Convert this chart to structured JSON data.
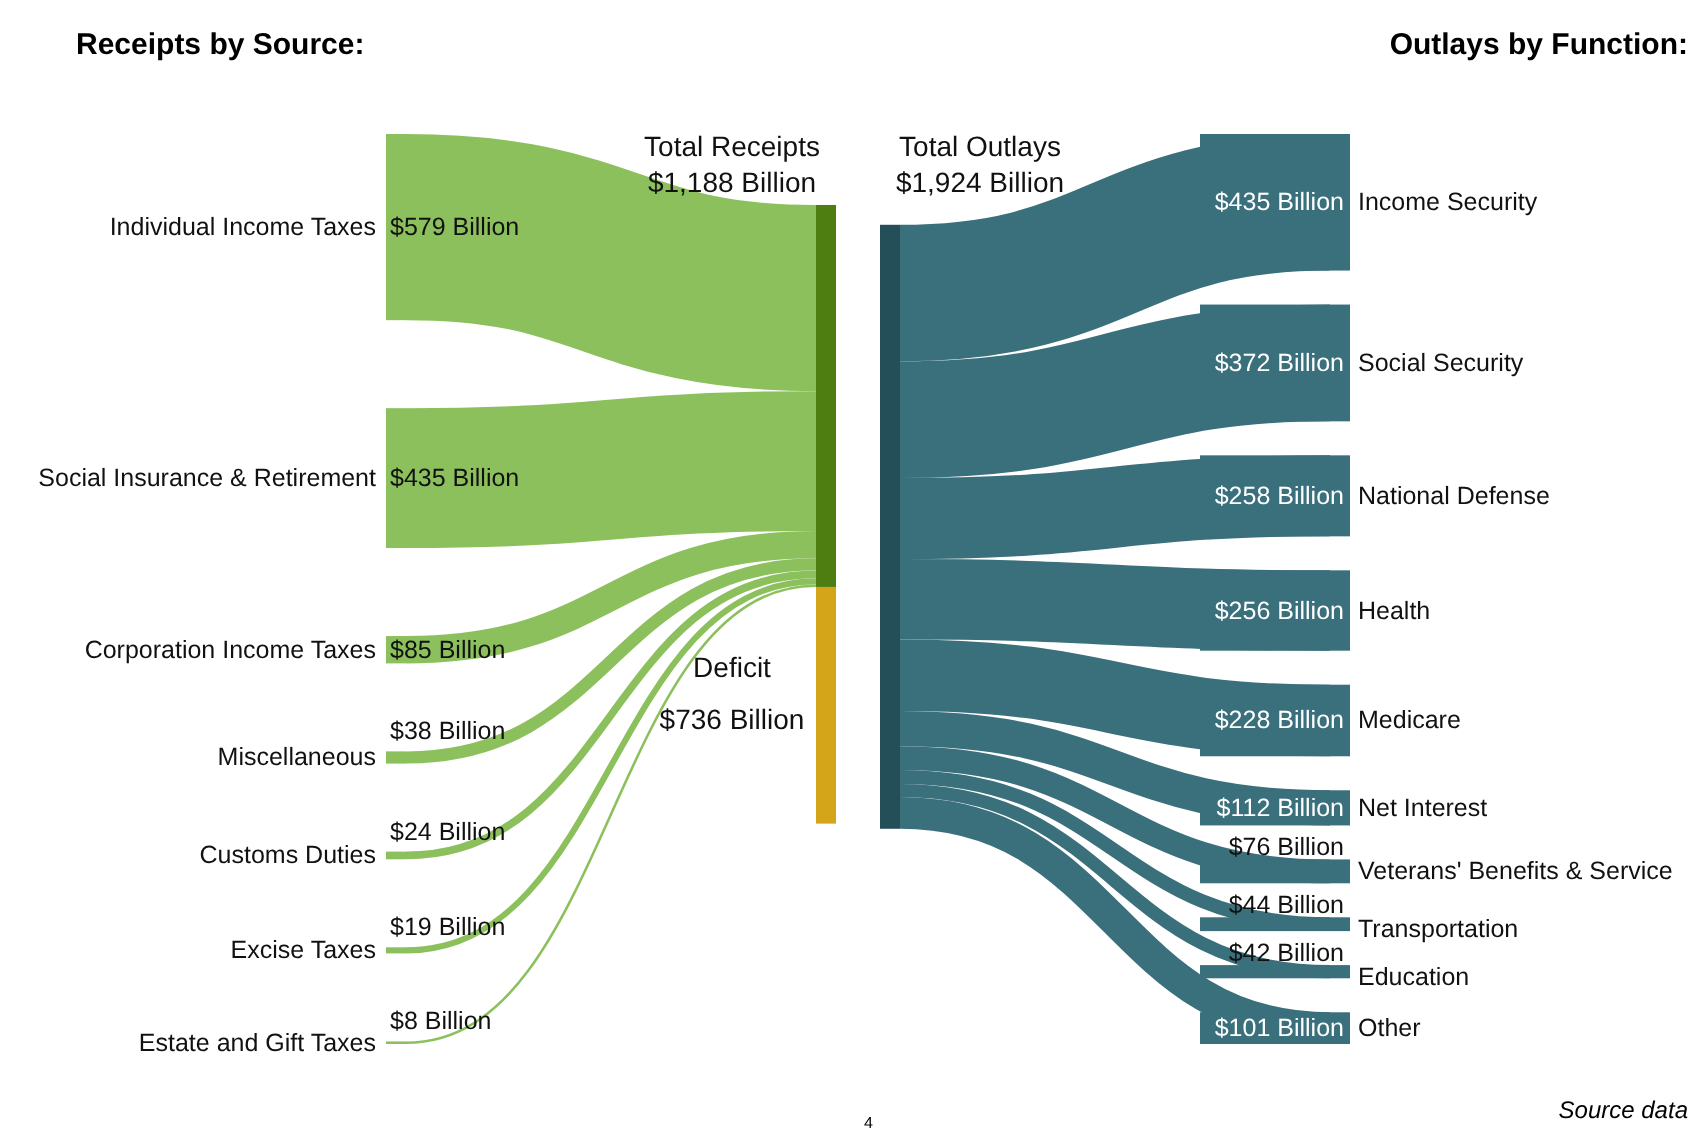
{
  "chart_data": [
    {
      "type": "other",
      "title": "Receipts by Source:",
      "categories": [
        "Individual Income Taxes",
        "Social Insurance & Retirement",
        "Corporation Income Taxes",
        "Miscellaneous",
        "Customs Duties",
        "Excise Taxes",
        "Estate and Gift Taxes",
        "Deficit"
      ],
      "values": [
        579,
        435,
        85,
        38,
        24,
        19,
        8,
        736
      ],
      "value_labels": [
        "$579 Billion",
        "$435 Billion",
        "$85 Billion",
        "$38 Billion",
        "$24 Billion",
        "$19 Billion",
        "$8 Billion",
        "$736 Billion"
      ],
      "colors": [
        "#8cc05c",
        "#8cc05c",
        "#8cc05c",
        "#8cc05c",
        "#8cc05c",
        "#8cc05c",
        "#8cc05c",
        "#d4a419"
      ],
      "annotations": [
        "Total Receipts\n$1,188 Billion"
      ]
    },
    {
      "type": "other",
      "title": "Outlays by Function:",
      "categories": [
        "Income Security",
        "Social Security",
        "National Defense",
        "Health",
        "Medicare",
        "Net Interest",
        "Veterans' Benefits & Service",
        "Transportation",
        "Education",
        "Other"
      ],
      "values": [
        435,
        372,
        258,
        256,
        228,
        112,
        76,
        44,
        42,
        101
      ],
      "value_labels": [
        "$435 Billion",
        "$372 Billion",
        "$258 Billion",
        "$256 Billion",
        "$228 Billion",
        "$112 Billion",
        "$76 Billion",
        "$44 Billion",
        "$42 Billion",
        "$101 Billion"
      ],
      "colors": [
        "#3a6f7c",
        "#3a6f7c",
        "#3a6f7c",
        "#3a6f7c",
        "#3a6f7c",
        "#3a6f7c",
        "#3a6f7c",
        "#3a6f7c",
        "#3a6f7c",
        "#3a6f7c"
      ],
      "annotations": [
        "Total Outlays\n$1,924 Billion",
        "Source data",
        "4"
      ]
    }
  ]
}
